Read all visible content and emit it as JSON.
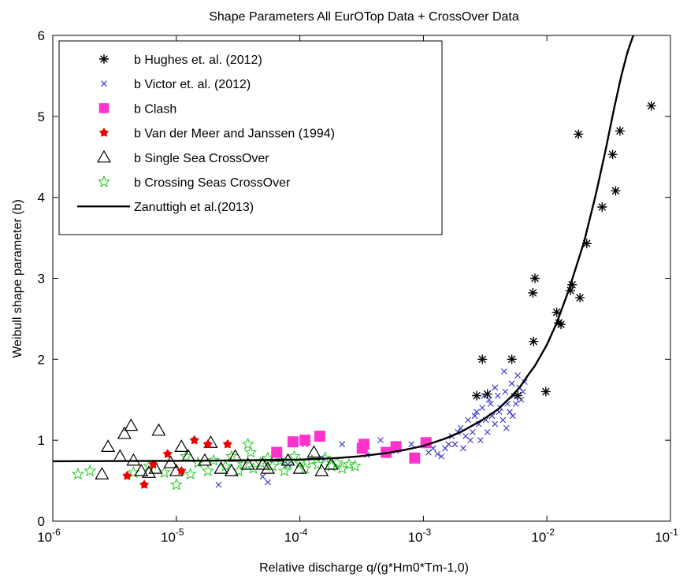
{
  "chart_data": {
    "type": "scatter",
    "title": "Shape Parameters All EurOTop Data + CrossOver Data",
    "xlabel": "Relative discharge q/(g*Hm0*Tm-1,0)",
    "ylabel": "Weibull shape parameter (b)",
    "xscale": "log",
    "xlim": [
      1e-06,
      0.1
    ],
    "ylim": [
      0,
      6
    ],
    "x_ticks": [
      {
        "value": 1e-06,
        "base": "10",
        "exp": "-6"
      },
      {
        "value": 1e-05,
        "base": "10",
        "exp": "-5"
      },
      {
        "value": 0.0001,
        "base": "10",
        "exp": "-4"
      },
      {
        "value": 0.001,
        "base": "10",
        "exp": "-3"
      },
      {
        "value": 0.01,
        "base": "10",
        "exp": "-2"
      },
      {
        "value": 0.1,
        "base": "10",
        "exp": "-1"
      }
    ],
    "y_ticks": [
      0,
      1,
      2,
      3,
      4,
      5,
      6
    ],
    "grid": false,
    "legend_position": "top-left",
    "series": [
      {
        "name": "b Hughes et. al. (2012)",
        "marker": "asterisk",
        "color": "#000000",
        "points": [
          [
            0.0027,
            1.55
          ],
          [
            0.003,
            2.0
          ],
          [
            0.0033,
            1.57
          ],
          [
            0.0052,
            2.0
          ],
          [
            0.0058,
            1.55
          ],
          [
            0.0077,
            2.82
          ],
          [
            0.008,
            3.0
          ],
          [
            0.0078,
            2.22
          ],
          [
            0.0098,
            1.6
          ],
          [
            0.012,
            2.58
          ],
          [
            0.0125,
            2.45
          ],
          [
            0.013,
            2.43
          ],
          [
            0.0155,
            2.85
          ],
          [
            0.016,
            2.92
          ],
          [
            0.0185,
            2.76
          ],
          [
            0.018,
            4.78
          ],
          [
            0.021,
            3.43
          ],
          [
            0.028,
            3.88
          ],
          [
            0.034,
            4.53
          ],
          [
            0.036,
            4.08
          ],
          [
            0.039,
            4.82
          ],
          [
            0.07,
            5.13
          ]
        ]
      },
      {
        "name": "b Victor et. al. (2012)",
        "marker": "x",
        "color": "#3333cc",
        "points": [
          [
            2.2e-05,
            0.45
          ],
          [
            5e-05,
            0.55
          ],
          [
            5.5e-05,
            0.48
          ],
          [
            8e-05,
            0.7
          ],
          [
            0.00011,
            0.95
          ],
          [
            0.00015,
            0.78
          ],
          [
            0.00022,
            0.95
          ],
          [
            0.00035,
            0.82
          ],
          [
            0.00045,
            1.0
          ],
          [
            0.0006,
            0.87
          ],
          [
            0.0008,
            0.95
          ],
          [
            0.0011,
            0.85
          ],
          [
            0.0013,
            0.83
          ],
          [
            0.0015,
            0.9
          ],
          [
            0.0017,
            1.05
          ],
          [
            0.0018,
            0.95
          ],
          [
            0.002,
            1.15
          ],
          [
            0.0022,
            1.05
          ],
          [
            0.0023,
            1.25
          ],
          [
            0.0025,
            1.1
          ],
          [
            0.0026,
            1.3
          ],
          [
            0.0028,
            1.2
          ],
          [
            0.0029,
            1.0
          ],
          [
            0.003,
            1.4
          ],
          [
            0.0032,
            1.25
          ],
          [
            0.0033,
            1.1
          ],
          [
            0.0035,
            1.45
          ],
          [
            0.0036,
            1.3
          ],
          [
            0.0038,
            1.2
          ],
          [
            0.004,
            1.55
          ],
          [
            0.0042,
            1.4
          ],
          [
            0.0044,
            1.25
          ],
          [
            0.0046,
            1.6
          ],
          [
            0.0048,
            1.45
          ],
          [
            0.005,
            1.35
          ],
          [
            0.0052,
            1.7
          ],
          [
            0.0054,
            1.55
          ],
          [
            0.0056,
            1.45
          ],
          [
            0.0058,
            1.8
          ],
          [
            0.006,
            1.65
          ],
          [
            0.0062,
            1.5
          ],
          [
            0.0064,
            1.6
          ],
          [
            0.0066,
            1.72
          ],
          [
            0.0045,
            1.85
          ],
          [
            0.0038,
            1.65
          ],
          [
            0.0031,
            1.55
          ],
          [
            0.0027,
            1.35
          ],
          [
            0.0024,
            1.0
          ],
          [
            0.0021,
            0.9
          ],
          [
            0.0019,
            1.1
          ],
          [
            0.0016,
            0.95
          ],
          [
            0.0014,
            0.8
          ],
          [
            0.0012,
            0.9
          ],
          [
            0.0053,
            1.3
          ],
          [
            0.0047,
            1.15
          ],
          [
            0.0041,
            1.35
          ],
          [
            0.0034,
            1.5
          ]
        ]
      },
      {
        "name": "b Clash",
        "marker": "square",
        "color": "#ff33cc",
        "points": [
          [
            6.5e-05,
            0.85
          ],
          [
            8.8e-05,
            0.98
          ],
          [
            0.00011,
            1.0
          ],
          [
            0.000145,
            1.05
          ],
          [
            0.00032,
            0.9
          ],
          [
            0.00033,
            0.95
          ],
          [
            0.0005,
            0.85
          ],
          [
            0.0006,
            0.92
          ],
          [
            0.00085,
            0.78
          ],
          [
            0.00105,
            0.97
          ]
        ]
      },
      {
        "name": "b Van der Meer and Janssen (1994)",
        "marker": "star-filled",
        "color": "#ee0000",
        "points": [
          [
            4e-06,
            0.56
          ],
          [
            5.5e-06,
            0.45
          ],
          [
            8.5e-06,
            0.83
          ],
          [
            1.4e-05,
            1.0
          ],
          [
            1.8e-05,
            0.95
          ],
          [
            2.6e-05,
            0.95
          ],
          [
            1.1e-05,
            0.62
          ],
          [
            6.5e-06,
            0.7
          ]
        ]
      },
      {
        "name": "b Single Sea CrossOver",
        "marker": "triangle",
        "color": "#000000",
        "points": [
          [
            2.5e-06,
            0.58
          ],
          [
            2.8e-06,
            0.92
          ],
          [
            3.5e-06,
            0.8
          ],
          [
            3.8e-06,
            1.08
          ],
          [
            4.3e-06,
            1.18
          ],
          [
            4.5e-06,
            0.75
          ],
          [
            5.2e-06,
            0.62
          ],
          [
            6e-06,
            0.6
          ],
          [
            6.8e-06,
            0.65
          ],
          [
            7.2e-06,
            1.12
          ],
          [
            9e-06,
            0.72
          ],
          [
            1e-05,
            0.62
          ],
          [
            1.1e-05,
            0.92
          ],
          [
            1.25e-05,
            0.8
          ],
          [
            1.7e-05,
            0.75
          ],
          [
            1.9e-05,
            0.97
          ],
          [
            2.3e-05,
            0.65
          ],
          [
            2.8e-05,
            0.62
          ],
          [
            3e-05,
            0.8
          ],
          [
            3.8e-05,
            0.7
          ],
          [
            5e-05,
            0.7
          ],
          [
            6.5e-05,
            0.8
          ],
          [
            8e-05,
            0.75
          ],
          [
            0.0001,
            0.65
          ],
          [
            0.00013,
            0.85
          ],
          [
            0.00015,
            0.62
          ],
          [
            0.00018,
            0.7
          ],
          [
            5.5e-05,
            0.65
          ]
        ]
      },
      {
        "name": "b Crossing Seas CrossOver",
        "marker": "star",
        "color": "#33cc33",
        "points": [
          [
            1.6e-06,
            0.58
          ],
          [
            2e-06,
            0.62
          ],
          [
            4.5e-06,
            0.6
          ],
          [
            6e-06,
            0.68
          ],
          [
            8e-06,
            0.6
          ],
          [
            1e-05,
            0.45
          ],
          [
            1.2e-05,
            0.8
          ],
          [
            1.5e-05,
            0.72
          ],
          [
            1.8e-05,
            0.62
          ],
          [
            2e-05,
            0.75
          ],
          [
            2.5e-05,
            0.68
          ],
          [
            2.8e-05,
            0.8
          ],
          [
            3.2e-05,
            0.62
          ],
          [
            3.5e-05,
            0.7
          ],
          [
            4e-05,
            0.85
          ],
          [
            4.2e-05,
            0.65
          ],
          [
            4.8e-05,
            0.72
          ],
          [
            5.5e-05,
            0.78
          ],
          [
            6e-05,
            0.68
          ],
          [
            7e-05,
            0.75
          ],
          [
            8e-05,
            0.7
          ],
          [
            9e-05,
            0.8
          ],
          [
            0.0001,
            0.72
          ],
          [
            0.00011,
            0.65
          ],
          [
            0.000125,
            0.75
          ],
          [
            0.00014,
            0.7
          ],
          [
            0.00016,
            0.78
          ],
          [
            0.00018,
            0.68
          ],
          [
            0.0002,
            0.72
          ],
          [
            0.00022,
            0.65
          ],
          [
            0.00025,
            0.7
          ],
          [
            0.00028,
            0.68
          ],
          [
            3.8e-05,
            0.95
          ],
          [
            1.3e-05,
            0.58
          ],
          [
            7.5e-05,
            0.62
          ]
        ]
      }
    ],
    "curve": {
      "name": "Zanuttigh et al.(2013)",
      "color": "#000000",
      "points": [
        [
          1e-06,
          0.74
        ],
        [
          1e-05,
          0.745
        ],
        [
          3e-05,
          0.75
        ],
        [
          0.0001,
          0.76
        ],
        [
          0.0002,
          0.78
        ],
        [
          0.0003,
          0.8
        ],
        [
          0.0005,
          0.84
        ],
        [
          0.0007,
          0.88
        ],
        [
          0.001,
          0.93
        ],
        [
          0.0015,
          1.02
        ],
        [
          0.002,
          1.1
        ],
        [
          0.003,
          1.25
        ],
        [
          0.004,
          1.38
        ],
        [
          0.005,
          1.52
        ],
        [
          0.006,
          1.65
        ],
        [
          0.007,
          1.8
        ],
        [
          0.008,
          1.92
        ],
        [
          0.01,
          2.18
        ],
        [
          0.012,
          2.45
        ],
        [
          0.015,
          2.85
        ],
        [
          0.02,
          3.45
        ],
        [
          0.025,
          4.05
        ],
        [
          0.03,
          4.6
        ],
        [
          0.035,
          5.1
        ],
        [
          0.04,
          5.5
        ],
        [
          0.045,
          5.8
        ],
        [
          0.05,
          6.0
        ]
      ]
    }
  }
}
